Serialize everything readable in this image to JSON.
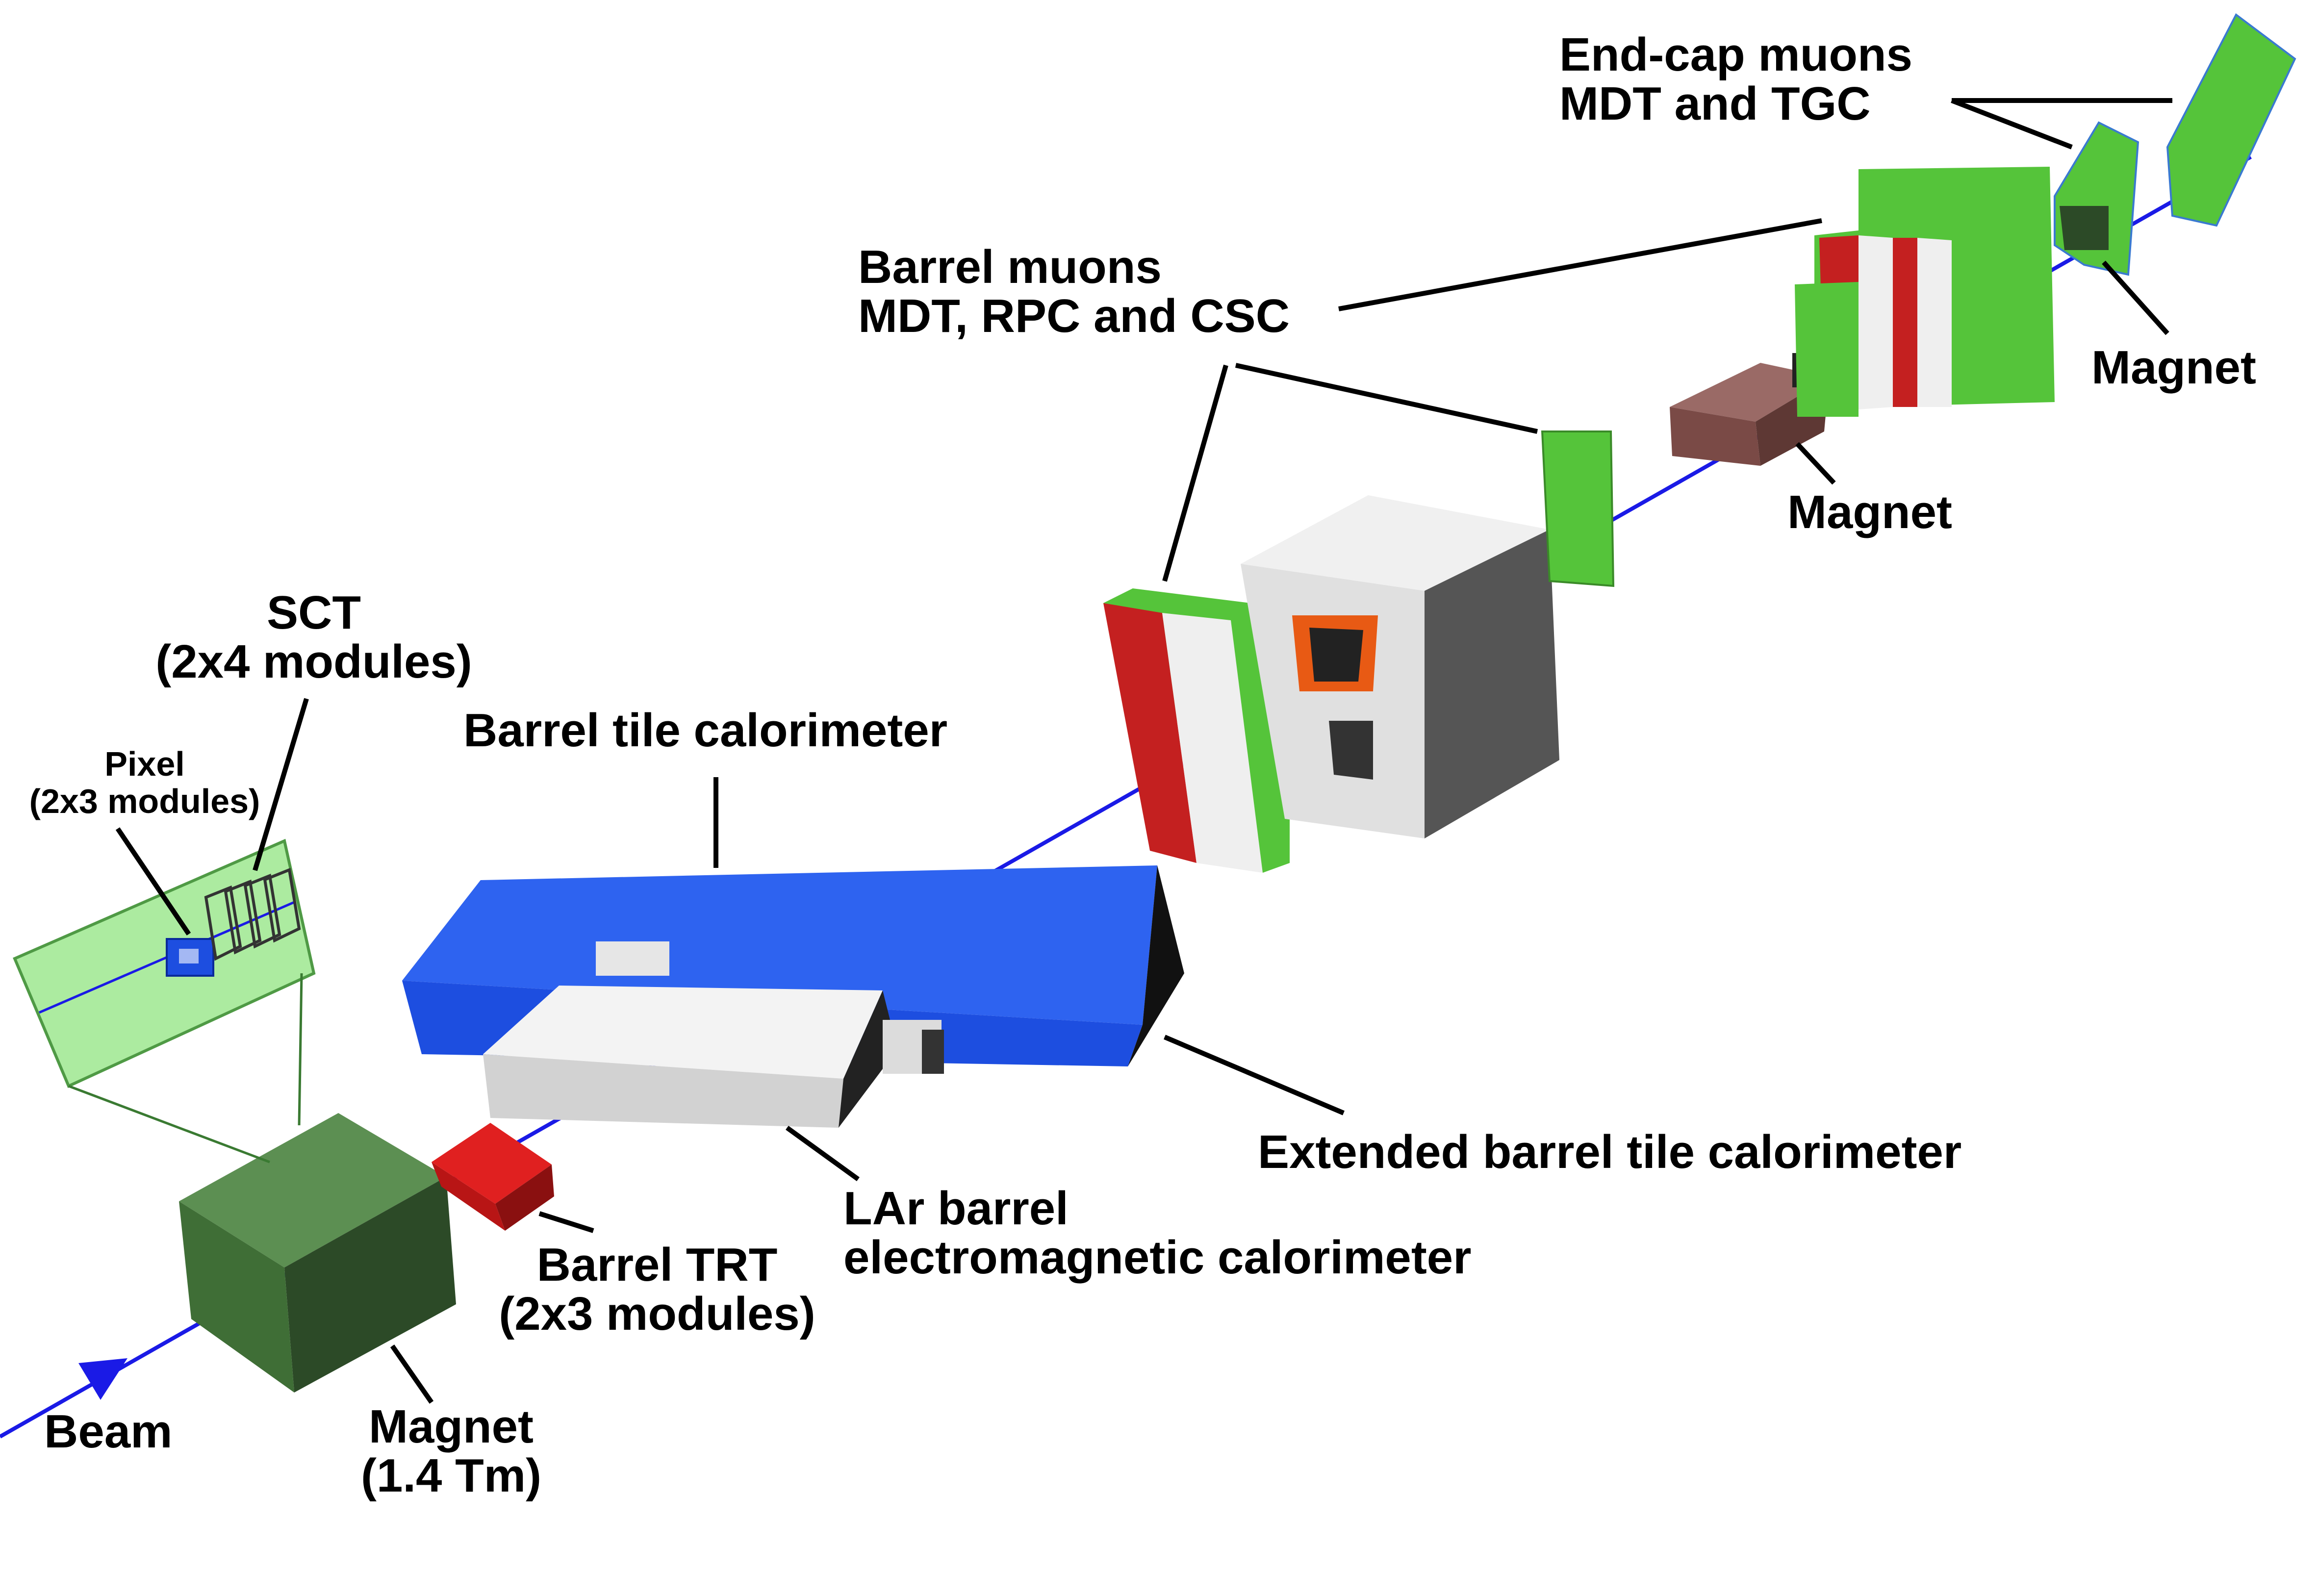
{
  "labels": {
    "endcap_muons": [
      "End-cap muons",
      "MDT and TGC"
    ],
    "magnet_endcap": "Magnet",
    "barrel_muons": [
      "Barrel muons",
      "MDT, RPC and CSC"
    ],
    "magnet_middle": "Magnet",
    "sct": [
      "SCT",
      "(2x4 modules)"
    ],
    "pixel": [
      "Pixel",
      "(2x3 modules)"
    ],
    "barrel_tile": "Barrel tile calorimeter",
    "extended_tile": "Extended barrel tile calorimeter",
    "lar": [
      "LAr barrel",
      "electromagnetic calorimeter"
    ],
    "barrel_trt": [
      "Barrel TRT",
      "(2x3 modules)"
    ],
    "beam": "Beam",
    "magnet_front": [
      "Magnet",
      "(1.4 Tm)"
    ]
  },
  "colors": {
    "beam": "#1a1ae6",
    "tile_blue": "#1d4ee0",
    "muon_green": "#55c43a",
    "chamber_red": "#c42020",
    "magnet_green": "#3f6e36",
    "magnet_brown": "#8a5550",
    "trt_red": "#e02020",
    "inner_detector_green": "#9ee88f"
  }
}
